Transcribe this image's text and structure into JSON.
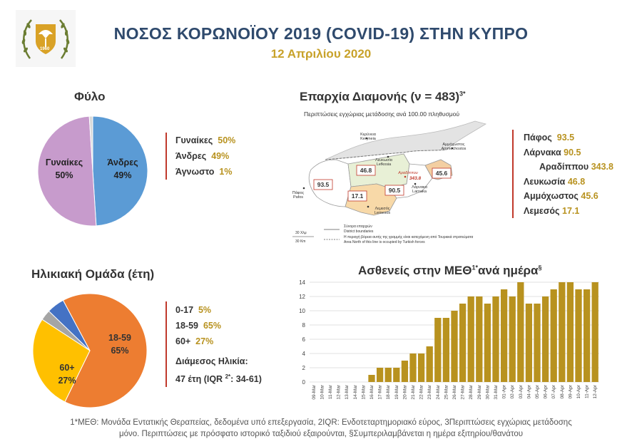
{
  "header": {
    "title": "ΝΟΣΟΣ ΚΟΡΩΝΟΪΟΥ 2019 (COVID-19) ΣΤΗΝ ΚΥΠΡΟ",
    "date": "12 Απριλίου 2020",
    "emblem_year": "1960"
  },
  "gender": {
    "title": "Φύλο",
    "legend": [
      {
        "label": "Γυναίκες",
        "value": "50%"
      },
      {
        "label": "Άνδρες",
        "value": "49%"
      },
      {
        "label": "Άγνωστο",
        "value": "1%"
      }
    ],
    "pie_labels": {
      "women": "Γυναίκες",
      "women_pct": "50%",
      "men": "Άνδρες",
      "men_pct": "49%"
    }
  },
  "district": {
    "title": "Επαρχία Διαμονής (ν = 483)",
    "title_sup": "3*",
    "map_caption": "Περιπτώσεις εγχώριας μετάδοσης ανά 100.00 πληθυσμού",
    "legend": [
      {
        "label": "Πάφος",
        "value": "93.5"
      },
      {
        "label": "Λάρνακα",
        "value": "90.5"
      },
      {
        "label": "Αραδίππου",
        "value": "343.8"
      },
      {
        "label": "Λευκωσία",
        "value": "46.8"
      },
      {
        "label": "Αμμόχωστος",
        "value": "45.6"
      },
      {
        "label": "Λεμεσός",
        "value": "17.1"
      }
    ],
    "map_values": {
      "pafos": "93.5",
      "lefkosia": "46.8",
      "limassol": "17.1",
      "larnaka": "90.5",
      "aradippou": "343.8",
      "ammochostos": "45.6"
    },
    "map_places": {
      "kyrenia": "Κερύνεια\nKeryneia",
      "lefkosia": "Λευκωσία\nLefkosia",
      "ammochostos": "Αμμόχωστος\nAmmochostos",
      "aradippou": "Αραδίππου",
      "larnaka": "Λάρνακα\nLarnaka",
      "pafos": "Πάφος\nPafos",
      "limassol": "Λεμεσός\nLemesos"
    },
    "map_legend": {
      "scale1": "30 Χλμ",
      "scale2": "30 Km",
      "boundaries_gr": "Σύνορα επαρχιών",
      "boundaries_en": "District boundaries",
      "occupied_gr": "Η περιοχή βόρεια αυτής της γραμμής είναι κατεχόμενη από Τουρκικά στρατεύματα",
      "occupied_en": "Area North of this line is occupied by Turkish forces"
    }
  },
  "age": {
    "title": "Ηλικιακή Ομάδα (έτη)",
    "legend": [
      {
        "label": "0-17",
        "value": "5%"
      },
      {
        "label": "18-59",
        "value": "65%"
      },
      {
        "label": "60+",
        "value": "27%"
      }
    ],
    "median_label": "Διάμεσος Ηλικία:",
    "median_value_pre": "47 έτη (IQR ",
    "median_sup": "2*",
    "median_value_post": ": 34-61)",
    "pie_labels": {
      "a1859": "18-59",
      "a1859_pct": "65%",
      "a60": "60+",
      "a60_pct": "27%"
    }
  },
  "icu": {
    "title": "Ασθενείς στην ΜΕΘ",
    "title_sup1": "1*",
    "title_mid": "ανά ημέρα",
    "title_sup2": "§"
  },
  "footer": {
    "line1": "1*ΜΕΘ: Μονάδα Εντατικής Θεραπείας, δεδομένα υπό επεξεργασία, 2IQR: Ενδοτεταρτημοριακό εύρος, 3Περιπτώσεις εγχώριας μετάδοσης",
    "line2": "μόνο. Περιπτώσεις με πρόσφατο ιστορικό ταξιδιού εξαιρούνται, §Συμπεριλαμβάνεται η ημέρα εξιτηρίου/θανάτου"
  },
  "colors": {
    "title": "#2f4a6d",
    "accent": "#c8a22a",
    "bar": "#b8921f",
    "women": "#c79bcc",
    "men": "#5b9bd5",
    "unknown": "#d9d9d9",
    "age_1859": "#ed7d31",
    "age_60": "#ffc000",
    "age_017": "#4472c4",
    "age_other": "#a5a5a5",
    "legend_line": "#c0392b"
  },
  "chart_data": [
    {
      "type": "pie",
      "title": "Φύλο",
      "categories": [
        "Γυναίκες",
        "Άνδρες",
        "Άγνωστο"
      ],
      "values": [
        50,
        49,
        1
      ]
    },
    {
      "type": "pie",
      "title": "Ηλικιακή Ομάδα (έτη)",
      "categories": [
        "0-17",
        "18-59",
        "60+"
      ],
      "values": [
        5,
        65,
        27
      ]
    },
    {
      "type": "bar",
      "title": "Ασθενείς στην ΜΕΘ ανά ημέρα",
      "categories": [
        "09-Mar",
        "10-Mar",
        "11-Mar",
        "12-Mar",
        "13-Mar",
        "14-Mar",
        "15-Mar",
        "16-Mar",
        "17-Mar",
        "18-Mar",
        "19-Mar",
        "20-Mar",
        "21-Mar",
        "22-Mar",
        "23-Mar",
        "24-Mar",
        "25-Mar",
        "26-Mar",
        "27-Mar",
        "28-Mar",
        "29-Mar",
        "30-Mar",
        "31-Mar",
        "01-Apr",
        "02-Apr",
        "03-Apr",
        "04-Apr",
        "05-Apr",
        "06-Apr",
        "07-Apr",
        "08-Apr",
        "09-Apr",
        "10-Apr",
        "11-Apr",
        "12-Apr"
      ],
      "values": [
        0,
        0,
        0,
        0,
        0,
        0,
        0,
        1,
        2,
        2,
        2,
        3,
        4,
        4,
        5,
        9,
        9,
        10,
        11,
        12,
        12,
        11,
        12,
        13,
        12,
        14,
        11,
        11,
        12,
        13,
        14,
        14,
        13,
        13,
        14
      ],
      "ylim": [
        0,
        14
      ],
      "yticks": [
        "0",
        "2",
        "4",
        "6",
        "8",
        "10",
        "12",
        "14"
      ],
      "grid": true
    }
  ]
}
